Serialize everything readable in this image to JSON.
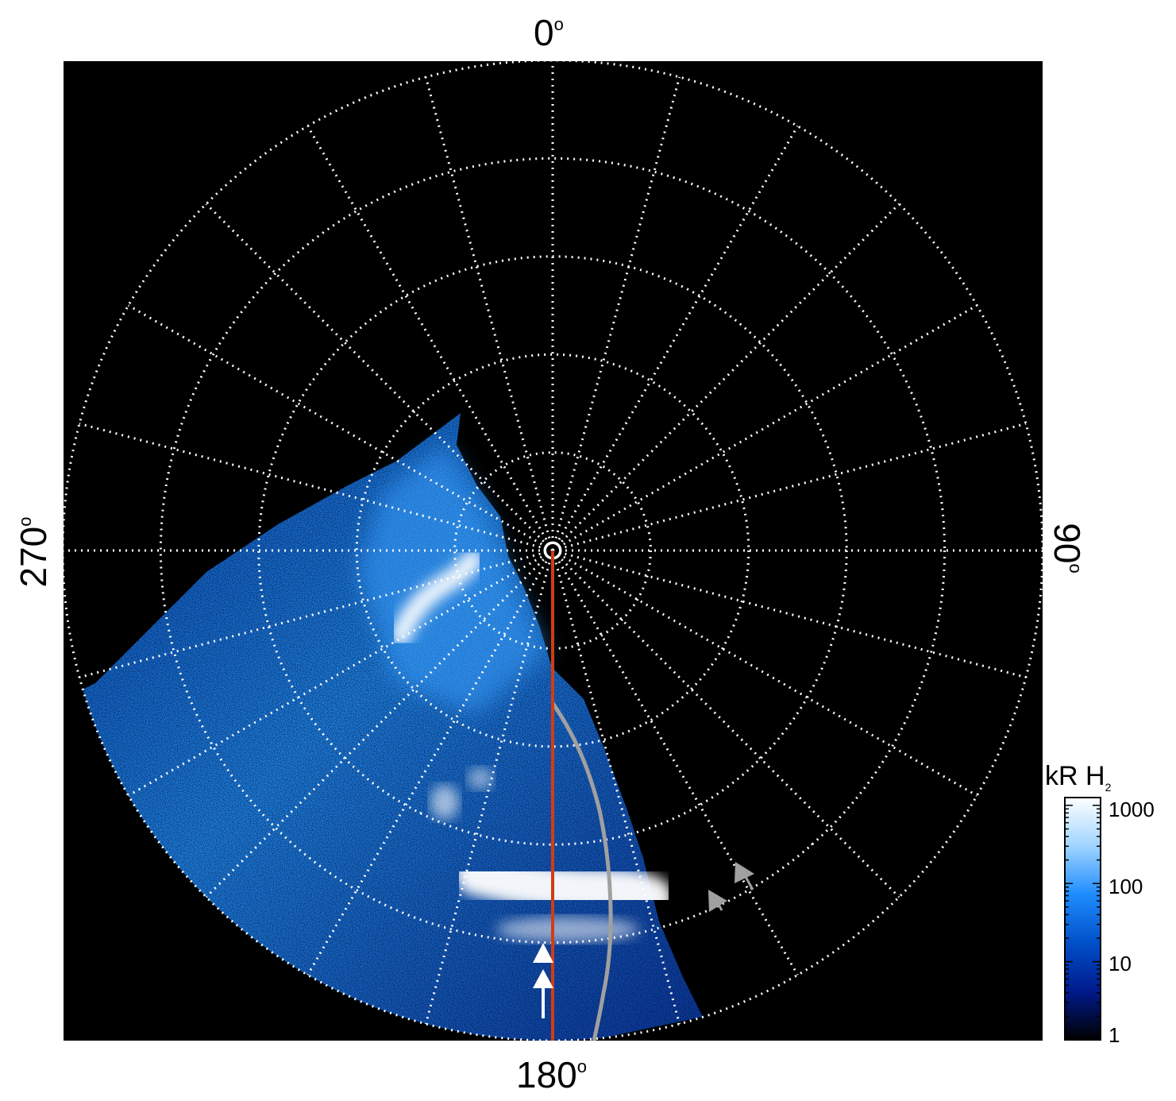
{
  "polar_plot": {
    "angle_labels": {
      "top": "0",
      "right": "90",
      "bottom": "180",
      "left": "270"
    },
    "degree_symbol": "o",
    "background_color": "#000000",
    "grid_color": "#ffffff",
    "meridian_line_color": "#d23c14",
    "model_curve_color": "#a0a0a0",
    "arrows": [
      {
        "name": "white-arrow-upper",
        "color": "#ffffff"
      },
      {
        "name": "white-arrow-lower",
        "color": "#ffffff"
      },
      {
        "name": "grey-arrow-1",
        "color": "#a0a0a0"
      },
      {
        "name": "grey-arrow-2",
        "color": "#a0a0a0"
      }
    ]
  },
  "colorbar": {
    "title": "kR H",
    "title_subscript": "2",
    "scale": "log",
    "ticks": [
      "1000",
      "100",
      "10",
      "1"
    ],
    "colors": [
      "#ffffff",
      "#9fd4ff",
      "#1e8cff",
      "#0050c8",
      "#001a8c",
      "#000000"
    ]
  }
}
